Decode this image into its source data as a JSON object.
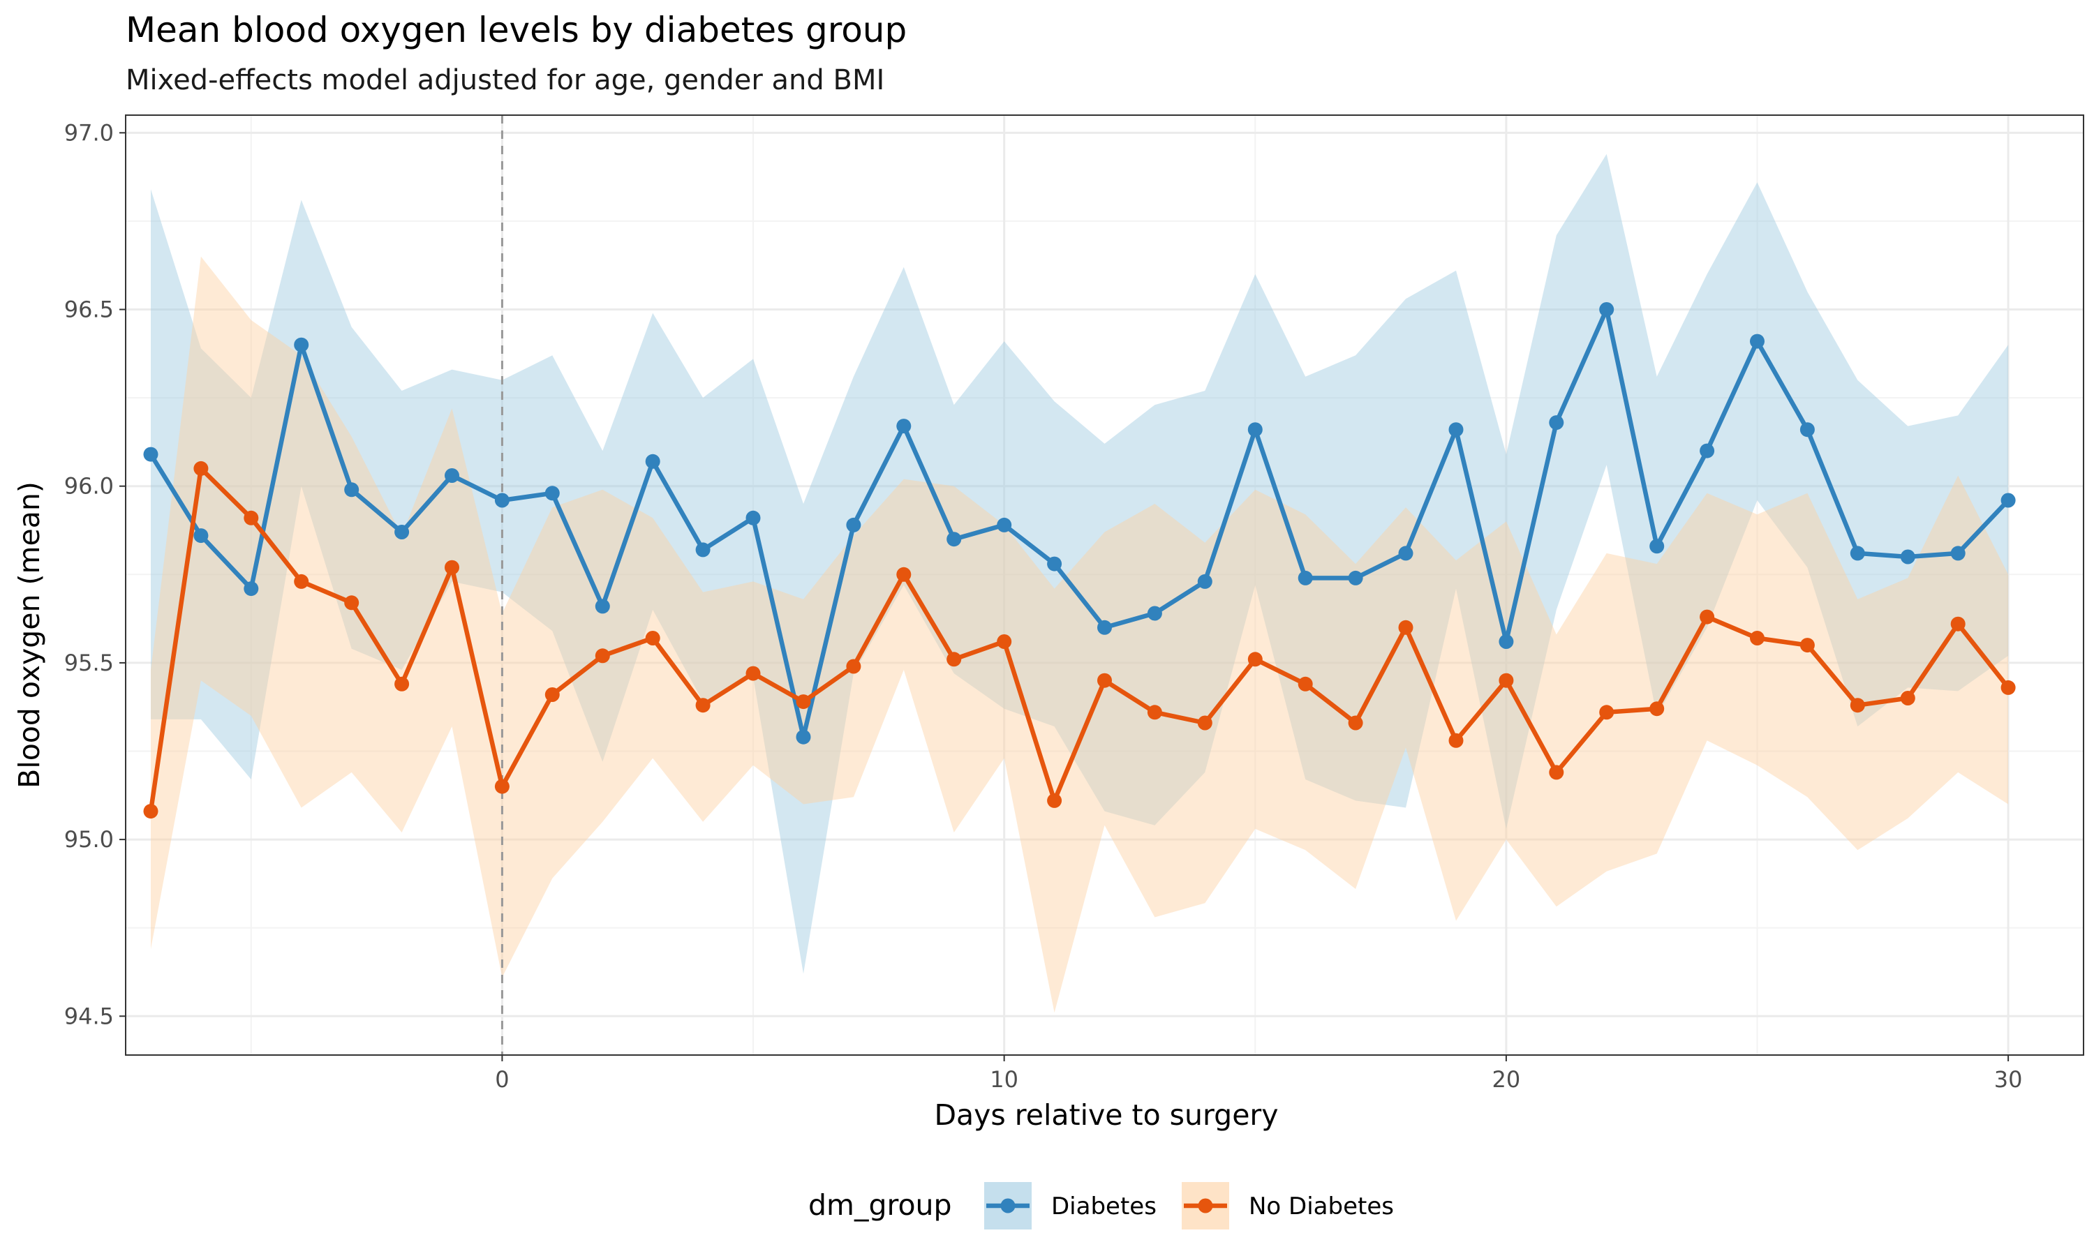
{
  "chart_data": {
    "type": "line",
    "title": "Mean blood oxygen levels by diabetes group",
    "subtitle": "Mixed-effects model adjusted for age, gender and BMI",
    "xlabel": "Days relative to surgery",
    "ylabel": "Blood oxygen (mean)",
    "xlim": [
      -7.5,
      31.5
    ],
    "ylim": [
      94.39,
      97.05
    ],
    "x_ticks": [
      0,
      10,
      20,
      30
    ],
    "y_ticks": [
      94.5,
      95.0,
      95.5,
      96.0,
      96.5,
      97.0
    ],
    "y_tick_labels": [
      "94.5",
      "95.0",
      "95.5",
      "96.0",
      "96.5",
      "97.0"
    ],
    "reference_line": {
      "x": 0,
      "style": "dashed"
    },
    "grid": true,
    "legend": {
      "title": "dm_group",
      "position": "bottom"
    },
    "x": [
      -7,
      -6,
      -5,
      -4,
      -3,
      -2,
      -1,
      0,
      1,
      2,
      3,
      4,
      5,
      6,
      7,
      8,
      9,
      10,
      11,
      12,
      13,
      14,
      15,
      16,
      17,
      18,
      19,
      20,
      21,
      22,
      23,
      24,
      25,
      26,
      27,
      28,
      29,
      30
    ],
    "series": [
      {
        "name": "Diabetes",
        "color": "#3182bd",
        "ribbon_color": "#9ecae1",
        "values": [
          96.09,
          95.86,
          95.71,
          96.4,
          95.99,
          95.87,
          96.03,
          95.96,
          95.98,
          95.66,
          96.07,
          95.82,
          95.91,
          95.29,
          95.89,
          96.17,
          95.85,
          95.89,
          95.78,
          95.6,
          95.64,
          95.73,
          96.16,
          95.74,
          95.74,
          95.81,
          96.16,
          95.56,
          96.18,
          96.5,
          95.83,
          96.1,
          96.41,
          96.16,
          95.81,
          95.8,
          95.81,
          95.96
        ],
        "upper": [
          96.84,
          96.39,
          96.25,
          96.81,
          96.45,
          96.27,
          96.33,
          96.3,
          96.37,
          96.1,
          96.49,
          96.25,
          96.36,
          95.95,
          96.31,
          96.62,
          96.23,
          96.41,
          96.24,
          96.12,
          96.23,
          96.27,
          96.6,
          96.31,
          96.37,
          96.53,
          96.61,
          96.09,
          96.71,
          96.94,
          96.31,
          96.6,
          96.86,
          96.55,
          96.3,
          96.17,
          96.2,
          96.4
        ],
        "lower": [
          95.34,
          95.34,
          95.17,
          96.0,
          95.54,
          95.48,
          95.73,
          95.7,
          95.59,
          95.22,
          95.65,
          95.39,
          95.46,
          94.62,
          95.47,
          95.72,
          95.47,
          95.37,
          95.32,
          95.08,
          95.04,
          95.19,
          95.72,
          95.17,
          95.11,
          95.09,
          95.71,
          95.03,
          95.65,
          96.06,
          95.35,
          95.6,
          95.96,
          95.77,
          95.32,
          95.43,
          95.42,
          95.52
        ]
      },
      {
        "name": "No Diabetes",
        "color": "#e6550d",
        "ribbon_color": "#fdd0a2",
        "values": [
          95.08,
          96.05,
          95.91,
          95.73,
          95.67,
          95.44,
          95.77,
          95.15,
          95.41,
          95.52,
          95.57,
          95.38,
          95.47,
          95.39,
          95.49,
          95.75,
          95.51,
          95.56,
          95.11,
          95.45,
          95.36,
          95.33,
          95.51,
          95.44,
          95.33,
          95.6,
          95.28,
          95.45,
          95.19,
          95.36,
          95.37,
          95.63,
          95.57,
          95.55,
          95.38,
          95.4,
          95.61,
          95.43
        ],
        "upper": [
          95.48,
          96.65,
          96.47,
          96.37,
          96.14,
          95.86,
          96.22,
          95.64,
          95.94,
          95.99,
          95.91,
          95.7,
          95.73,
          95.68,
          95.86,
          96.02,
          96.0,
          95.89,
          95.71,
          95.87,
          95.95,
          95.84,
          95.99,
          95.92,
          95.78,
          95.94,
          95.79,
          95.9,
          95.58,
          95.81,
          95.78,
          95.98,
          95.92,
          95.98,
          95.68,
          95.74,
          96.03,
          95.75
        ],
        "lower": [
          94.69,
          95.45,
          95.35,
          95.09,
          95.19,
          95.02,
          95.32,
          94.61,
          94.89,
          95.05,
          95.23,
          95.05,
          95.21,
          95.1,
          95.12,
          95.48,
          95.02,
          95.23,
          94.51,
          95.04,
          94.78,
          94.82,
          95.03,
          94.97,
          94.86,
          95.26,
          94.77,
          95.0,
          94.81,
          94.91,
          94.96,
          95.28,
          95.21,
          95.12,
          94.97,
          95.06,
          95.19,
          95.1
        ]
      }
    ]
  }
}
